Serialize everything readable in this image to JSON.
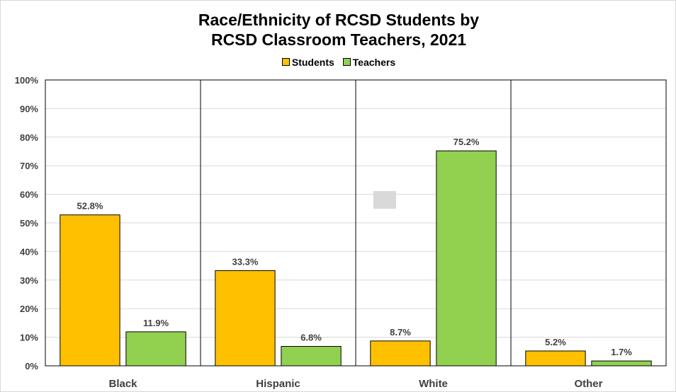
{
  "chart_data": {
    "type": "bar",
    "title_lines": [
      "Race/Ethnicity of RCSD Students by",
      "RCSD Classroom Teachers, 2021"
    ],
    "categories": [
      "Black",
      "Hispanic",
      "White",
      "Other"
    ],
    "series": [
      {
        "name": "Students",
        "color": "#ffc000",
        "values": [
          52.8,
          33.3,
          8.7,
          5.2
        ],
        "labels": [
          "52.8%",
          "33.3%",
          "8.7%",
          "5.2%"
        ]
      },
      {
        "name": "Teachers",
        "color": "#92d050",
        "values": [
          11.9,
          6.8,
          75.2,
          1.7
        ],
        "labels": [
          "11.9%",
          "6.8%",
          "75.2%",
          "1.7%"
        ]
      }
    ],
    "ylim": [
      0,
      100
    ],
    "yticks": [
      "0%",
      "10%",
      "20%",
      "30%",
      "40%",
      "50%",
      "60%",
      "70%",
      "80%",
      "90%",
      "100%"
    ],
    "legend_position": "top",
    "gridlines": true
  }
}
